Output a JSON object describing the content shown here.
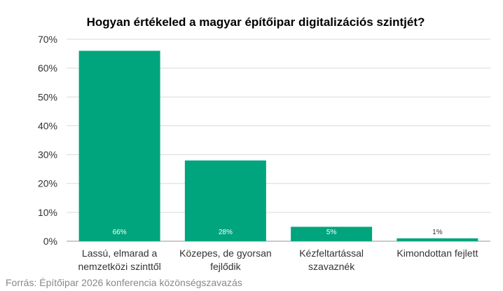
{
  "chart_data": {
    "type": "bar",
    "title": "Hogyan értékeled a magyar építőipar digitalizációs szintjét?",
    "categories": [
      [
        "Lassú, elmarad a",
        "nemzetközi szinttől"
      ],
      [
        "Közepes, de gyorsan",
        "fejlődik"
      ],
      [
        "Kézfeltartással",
        "szavaznék"
      ],
      [
        "Kimondottan fejlett"
      ]
    ],
    "values": [
      66,
      28,
      5,
      1
    ],
    "data_labels": [
      "66%",
      "28%",
      "5%",
      "1%"
    ],
    "ylim": [
      0,
      70
    ],
    "yticks": [
      0,
      10,
      20,
      30,
      40,
      50,
      60,
      70
    ],
    "ytick_labels": [
      "0%",
      "10%",
      "20%",
      "30%",
      "40%",
      "50%",
      "60%",
      "70%"
    ],
    "xlabel": "",
    "ylabel": "",
    "grid": true,
    "bar_color": "#00a57d",
    "label_color_inside": "#ffffff",
    "label_color_outside": "#333333",
    "source": "Forrás: Építőipar 2026 konferencia közönségszavazás"
  }
}
